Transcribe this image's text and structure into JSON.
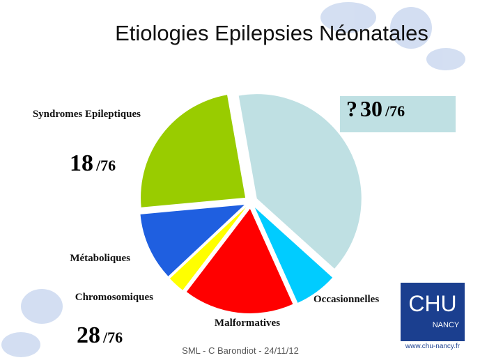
{
  "chart_data": {
    "type": "pie",
    "title": "Etiologies Epilepsies Néonatales",
    "categories": [
      null,
      "Occasionnelles",
      "Malformatives",
      "Chromosomiques",
      "Métaboliques",
      "Syndromes Epileptiques"
    ],
    "values": [
      30,
      5,
      13,
      2,
      8,
      18
    ],
    "colors": [
      "#bfe0e3",
      "#00ccff",
      "#ff0000",
      "#ffff00",
      "#1f5fe0",
      "#99cc00"
    ],
    "annotations": [
      {
        "prefix": "?",
        "number": "30",
        "suffix": "/76"
      },
      {
        "number": "18",
        "suffix": "/76"
      },
      {
        "number": "28",
        "suffix": "/76"
      }
    ]
  },
  "footer": "SML - C Barondiot - 24/11/12",
  "logo": {
    "name": "CHU",
    "city": "NANCY",
    "url": "www.chu-nancy.fr"
  }
}
